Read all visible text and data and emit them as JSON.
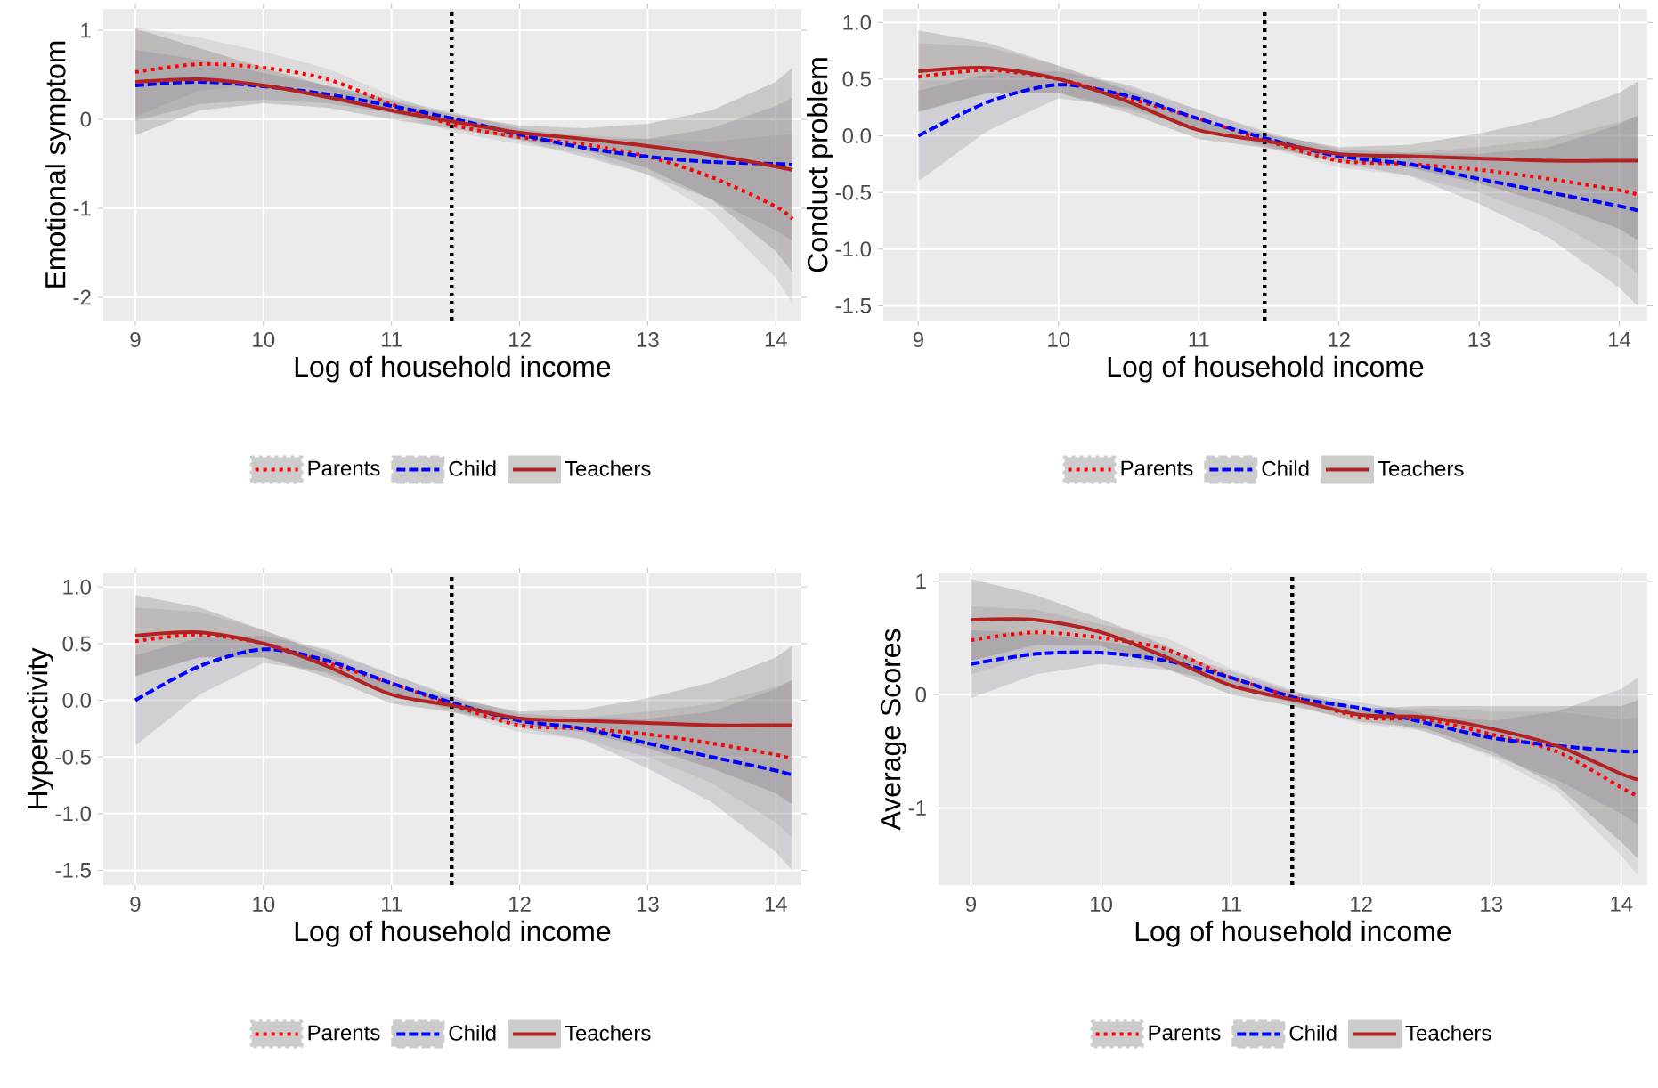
{
  "chart_data": [
    {
      "type": "line",
      "xlabel": "Log of household income",
      "ylabel": "Emotional symptom",
      "x": [
        9.0,
        9.5,
        10,
        10.5,
        11,
        11.5,
        12,
        12.5,
        13,
        13.5,
        14,
        14.13
      ],
      "xlim": [
        8.75,
        14.2
      ],
      "xticks": [
        9,
        10,
        11,
        12,
        13,
        14
      ],
      "ylim": [
        -2.26,
        1.24
      ],
      "yticks": [
        -2,
        -1,
        0,
        1
      ],
      "grid": true,
      "legend": "bottom",
      "marker": "none",
      "ref_lines": [
        {
          "axis": "x",
          "value": 11.47,
          "color": "#000000",
          "line_style": "dotted"
        }
      ],
      "series": [
        {
          "name": "Parents",
          "color": "#ff0000",
          "line_style": "dotted",
          "values": [
            0.53,
            0.62,
            0.58,
            0.45,
            0.17,
            -0.07,
            -0.2,
            -0.28,
            -0.42,
            -0.65,
            -0.98,
            -1.12
          ],
          "lower": [
            0.03,
            0.32,
            0.4,
            0.33,
            0.07,
            -0.15,
            -0.28,
            -0.38,
            -0.62,
            -1.05,
            -1.78,
            -2.07
          ],
          "upper": [
            1.03,
            0.92,
            0.76,
            0.57,
            0.27,
            0.01,
            -0.12,
            -0.18,
            -0.22,
            -0.25,
            -0.18,
            -0.17
          ]
        },
        {
          "name": "Child",
          "color": "#0000ff",
          "line_style": "dashed",
          "values": [
            0.38,
            0.42,
            0.37,
            0.28,
            0.15,
            0.0,
            -0.17,
            -0.32,
            -0.42,
            -0.48,
            -0.5,
            -0.51
          ],
          "lower": [
            -0.02,
            0.17,
            0.22,
            0.18,
            0.07,
            -0.07,
            -0.24,
            -0.42,
            -0.62,
            -0.9,
            -1.25,
            -1.36
          ],
          "upper": [
            0.78,
            0.67,
            0.52,
            0.38,
            0.23,
            0.07,
            -0.1,
            -0.22,
            -0.22,
            -0.1,
            0.15,
            0.24
          ]
        },
        {
          "name": "Teachers",
          "color": "#b22222",
          "line_style": "solid",
          "values": [
            0.42,
            0.45,
            0.38,
            0.25,
            0.1,
            -0.03,
            -0.15,
            -0.22,
            -0.3,
            -0.4,
            -0.53,
            -0.57
          ],
          "lower": [
            -0.18,
            0.1,
            0.18,
            0.13,
            0.0,
            -0.11,
            -0.23,
            -0.34,
            -0.55,
            -0.9,
            -1.48,
            -1.72
          ],
          "upper": [
            1.02,
            0.8,
            0.58,
            0.37,
            0.2,
            0.05,
            -0.07,
            -0.1,
            -0.05,
            0.1,
            0.42,
            0.58
          ]
        }
      ]
    },
    {
      "type": "line",
      "xlabel": "Log of household income",
      "ylabel": "Conduct problem",
      "x": [
        9.0,
        9.5,
        10,
        10.5,
        11,
        11.5,
        12,
        12.5,
        13,
        13.5,
        14,
        14.13
      ],
      "xlim": [
        8.75,
        14.2
      ],
      "xticks": [
        9,
        10,
        11,
        12,
        13,
        14
      ],
      "ylim": [
        -1.63,
        1.12
      ],
      "yticks": [
        {
          "value": -1.5,
          "label": "-1.5"
        },
        {
          "value": -1,
          "label": "-1.0"
        },
        {
          "value": -0.5,
          "label": "-0.5"
        },
        {
          "value": 0,
          "label": "0.0"
        },
        {
          "value": 0.5,
          "label": "0.5"
        },
        {
          "value": 1,
          "label": "1.0"
        }
      ],
      "grid": true,
      "legend": "bottom",
      "marker": "none",
      "ref_lines": [
        {
          "axis": "x",
          "value": 11.47,
          "color": "#000000",
          "line_style": "dotted"
        }
      ],
      "series": [
        {
          "name": "Parents",
          "color": "#ff0000",
          "line_style": "dotted",
          "values": [
            0.52,
            0.58,
            0.5,
            0.33,
            0.15,
            -0.05,
            -0.22,
            -0.25,
            -0.3,
            -0.38,
            -0.48,
            -0.52
          ],
          "lower": [
            0.22,
            0.38,
            0.38,
            0.23,
            0.07,
            -0.11,
            -0.28,
            -0.35,
            -0.5,
            -0.73,
            -1.08,
            -1.22
          ],
          "upper": [
            0.82,
            0.78,
            0.62,
            0.43,
            0.23,
            0.01,
            -0.16,
            -0.15,
            -0.1,
            -0.03,
            0.12,
            0.18
          ]
        },
        {
          "name": "Child",
          "color": "#0000ff",
          "line_style": "dashed",
          "values": [
            0.0,
            0.3,
            0.45,
            0.35,
            0.15,
            -0.03,
            -0.18,
            -0.25,
            -0.38,
            -0.5,
            -0.62,
            -0.66
          ],
          "lower": [
            -0.4,
            0.05,
            0.33,
            0.25,
            0.07,
            -0.09,
            -0.24,
            -0.35,
            -0.6,
            -0.9,
            -1.34,
            -1.5
          ],
          "upper": [
            0.4,
            0.55,
            0.57,
            0.45,
            0.23,
            0.03,
            -0.12,
            -0.15,
            -0.16,
            -0.1,
            0.1,
            0.18
          ]
        },
        {
          "name": "Teachers",
          "color": "#b22222",
          "line_style": "solid",
          "values": [
            0.57,
            0.6,
            0.5,
            0.3,
            0.05,
            -0.05,
            -0.16,
            -0.18,
            -0.2,
            -0.22,
            -0.22,
            -0.22
          ],
          "lower": [
            0.21,
            0.38,
            0.38,
            0.2,
            -0.03,
            -0.11,
            -0.22,
            -0.28,
            -0.42,
            -0.6,
            -0.82,
            -0.92
          ],
          "upper": [
            0.93,
            0.82,
            0.62,
            0.4,
            0.13,
            0.01,
            -0.1,
            -0.08,
            0.02,
            0.16,
            0.38,
            0.48
          ]
        }
      ]
    },
    {
      "type": "line",
      "xlabel": "Log of household income",
      "ylabel": "Hyperactivity",
      "x": [
        9.0,
        9.5,
        10,
        10.5,
        11,
        11.5,
        12,
        12.5,
        13,
        13.5,
        14,
        14.13
      ],
      "xlim": [
        8.75,
        14.2
      ],
      "xticks": [
        9,
        10,
        11,
        12,
        13,
        14
      ],
      "ylim": [
        -1.63,
        1.12
      ],
      "yticks": [
        {
          "value": -1.5,
          "label": "-1.5"
        },
        {
          "value": -1,
          "label": "-1.0"
        },
        {
          "value": -0.5,
          "label": "-0.5"
        },
        {
          "value": 0,
          "label": "0.0"
        },
        {
          "value": 0.5,
          "label": "0.5"
        },
        {
          "value": 1,
          "label": "1.0"
        }
      ],
      "grid": true,
      "legend": "bottom",
      "marker": "none",
      "ref_lines": [
        {
          "axis": "x",
          "value": 11.47,
          "color": "#000000",
          "line_style": "dotted"
        }
      ],
      "series": [
        {
          "name": "Parents",
          "color": "#ff0000",
          "line_style": "dotted",
          "values": [
            0.52,
            0.58,
            0.5,
            0.33,
            0.15,
            -0.05,
            -0.22,
            -0.25,
            -0.3,
            -0.38,
            -0.48,
            -0.52
          ],
          "lower": [
            0.22,
            0.38,
            0.38,
            0.23,
            0.07,
            -0.11,
            -0.28,
            -0.35,
            -0.5,
            -0.73,
            -1.08,
            -1.22
          ],
          "upper": [
            0.82,
            0.78,
            0.62,
            0.43,
            0.23,
            0.01,
            -0.16,
            -0.15,
            -0.1,
            -0.03,
            0.12,
            0.18
          ]
        },
        {
          "name": "Child",
          "color": "#0000ff",
          "line_style": "dashed",
          "values": [
            0.0,
            0.3,
            0.45,
            0.35,
            0.15,
            -0.03,
            -0.18,
            -0.25,
            -0.38,
            -0.5,
            -0.62,
            -0.66
          ],
          "lower": [
            -0.4,
            0.05,
            0.33,
            0.25,
            0.07,
            -0.09,
            -0.24,
            -0.35,
            -0.6,
            -0.9,
            -1.34,
            -1.5
          ],
          "upper": [
            0.4,
            0.55,
            0.57,
            0.45,
            0.23,
            0.03,
            -0.12,
            -0.15,
            -0.16,
            -0.1,
            0.1,
            0.18
          ]
        },
        {
          "name": "Teachers",
          "color": "#b22222",
          "line_style": "solid",
          "values": [
            0.57,
            0.6,
            0.5,
            0.3,
            0.05,
            -0.05,
            -0.16,
            -0.18,
            -0.2,
            -0.22,
            -0.22,
            -0.22
          ],
          "lower": [
            0.21,
            0.38,
            0.38,
            0.2,
            -0.03,
            -0.11,
            -0.22,
            -0.28,
            -0.42,
            -0.6,
            -0.82,
            -0.92
          ],
          "upper": [
            0.93,
            0.82,
            0.62,
            0.4,
            0.13,
            0.01,
            -0.1,
            -0.08,
            0.02,
            0.16,
            0.38,
            0.48
          ]
        }
      ]
    },
    {
      "type": "line",
      "xlabel": "Log of household income",
      "ylabel": "Average Scores",
      "x": [
        9.0,
        9.5,
        10,
        10.5,
        11,
        11.5,
        12,
        12.5,
        13,
        13.5,
        14,
        14.13
      ],
      "xlim": [
        8.75,
        14.2
      ],
      "xticks": [
        9,
        10,
        11,
        12,
        13,
        14
      ],
      "ylim": [
        -1.68,
        1.07
      ],
      "yticks": [
        -1,
        0,
        1
      ],
      "grid": true,
      "legend": "bottom",
      "marker": "none",
      "ref_lines": [
        {
          "axis": "x",
          "value": 11.47,
          "color": "#000000",
          "line_style": "dotted"
        }
      ],
      "series": [
        {
          "name": "Parents",
          "color": "#ff0000",
          "line_style": "dotted",
          "values": [
            0.48,
            0.55,
            0.5,
            0.4,
            0.15,
            -0.03,
            -0.2,
            -0.22,
            -0.35,
            -0.5,
            -0.82,
            -0.9
          ],
          "lower": [
            0.18,
            0.35,
            0.38,
            0.3,
            0.07,
            -0.09,
            -0.26,
            -0.32,
            -0.55,
            -0.85,
            -1.42,
            -1.6
          ],
          "upper": [
            0.78,
            0.75,
            0.62,
            0.5,
            0.23,
            0.03,
            -0.14,
            -0.12,
            -0.15,
            -0.15,
            -0.22,
            -0.2
          ]
        },
        {
          "name": "Child",
          "color": "#0000ff",
          "line_style": "dashed",
          "values": [
            0.27,
            0.36,
            0.37,
            0.3,
            0.15,
            -0.03,
            -0.12,
            -0.25,
            -0.38,
            -0.45,
            -0.5,
            -0.5
          ],
          "lower": [
            -0.03,
            0.18,
            0.27,
            0.22,
            0.09,
            -0.08,
            -0.17,
            -0.33,
            -0.53,
            -0.75,
            -1.05,
            -1.15
          ],
          "upper": [
            0.57,
            0.54,
            0.47,
            0.38,
            0.21,
            0.02,
            -0.07,
            -0.17,
            -0.23,
            -0.15,
            0.05,
            0.15
          ]
        },
        {
          "name": "Teachers",
          "color": "#b22222",
          "line_style": "solid",
          "values": [
            0.66,
            0.66,
            0.55,
            0.33,
            0.08,
            -0.05,
            -0.18,
            -0.2,
            -0.3,
            -0.45,
            -0.7,
            -0.75
          ],
          "lower": [
            0.3,
            0.44,
            0.43,
            0.23,
            0.0,
            -0.11,
            -0.24,
            -0.3,
            -0.5,
            -0.8,
            -1.3,
            -1.45
          ],
          "upper": [
            1.02,
            0.88,
            0.67,
            0.43,
            0.16,
            0.01,
            -0.12,
            -0.1,
            -0.1,
            -0.1,
            -0.1,
            -0.05
          ]
        }
      ]
    }
  ]
}
